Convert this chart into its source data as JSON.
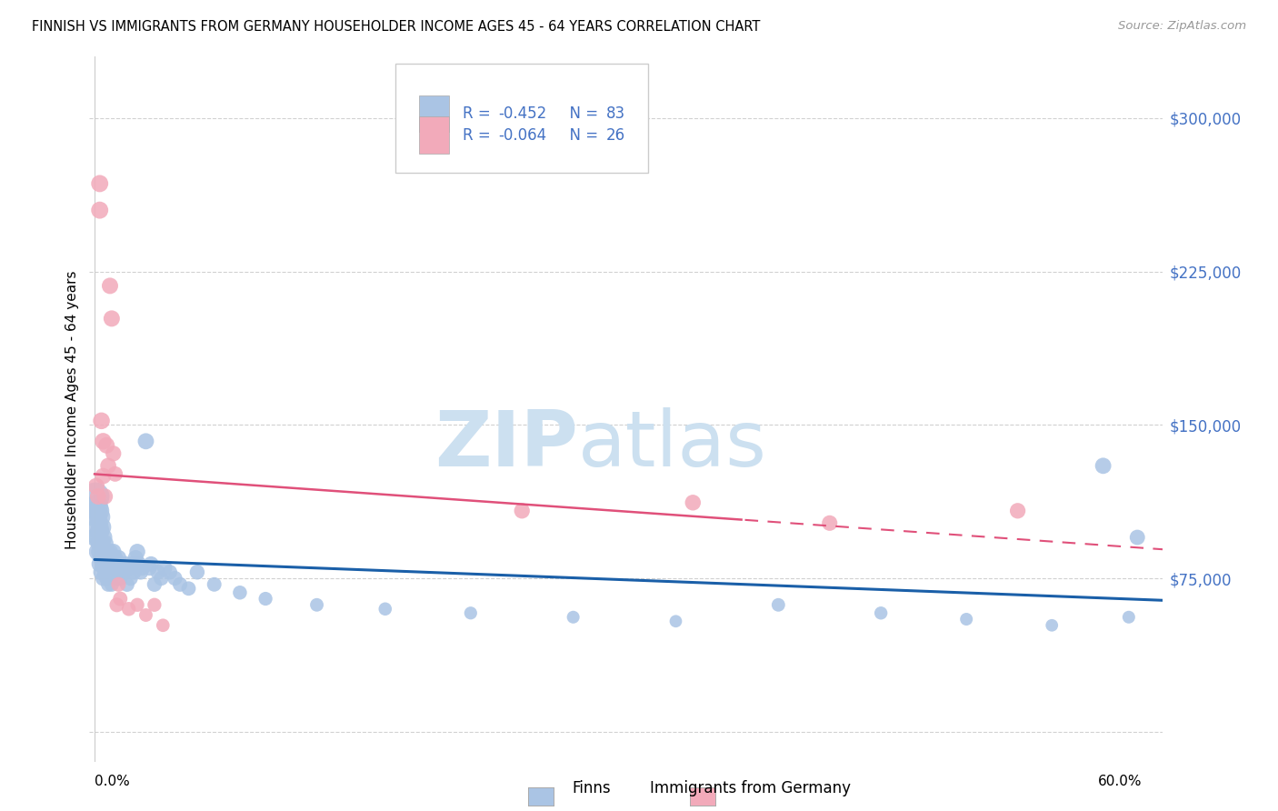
{
  "title": "FINNISH VS IMMIGRANTS FROM GERMANY HOUSEHOLDER INCOME AGES 45 - 64 YEARS CORRELATION CHART",
  "source": "Source: ZipAtlas.com",
  "ylabel": "Householder Income Ages 45 - 64 years",
  "y_ticks": [
    0,
    75000,
    150000,
    225000,
    300000
  ],
  "y_tick_labels": [
    "",
    "$75,000",
    "$150,000",
    "$225,000",
    "$300,000"
  ],
  "ylim": [
    -15000,
    330000
  ],
  "xlim": [
    -0.003,
    0.625
  ],
  "finn_color": "#aac4e4",
  "german_color": "#f2aaba",
  "finn_line_color": "#1a5fa8",
  "german_line_color": "#e0507a",
  "right_tick_color": "#4472c4",
  "grid_color": "#cccccc",
  "finns_x": [
    0.0005,
    0.001,
    0.001,
    0.001,
    0.002,
    0.002,
    0.002,
    0.002,
    0.003,
    0.003,
    0.003,
    0.003,
    0.003,
    0.004,
    0.004,
    0.004,
    0.004,
    0.005,
    0.005,
    0.005,
    0.005,
    0.006,
    0.006,
    0.006,
    0.007,
    0.007,
    0.007,
    0.008,
    0.008,
    0.008,
    0.009,
    0.009,
    0.01,
    0.01,
    0.01,
    0.011,
    0.011,
    0.012,
    0.013,
    0.014,
    0.014,
    0.015,
    0.015,
    0.016,
    0.017,
    0.018,
    0.019,
    0.02,
    0.021,
    0.022,
    0.023,
    0.024,
    0.025,
    0.026,
    0.027,
    0.028,
    0.03,
    0.032,
    0.033,
    0.035,
    0.037,
    0.039,
    0.041,
    0.044,
    0.047,
    0.05,
    0.055,
    0.06,
    0.07,
    0.085,
    0.1,
    0.13,
    0.17,
    0.22,
    0.28,
    0.34,
    0.4,
    0.46,
    0.51,
    0.56,
    0.59,
    0.605,
    0.61
  ],
  "finns_y": [
    115000,
    110000,
    105000,
    95000,
    108000,
    100000,
    95000,
    88000,
    105000,
    98000,
    92000,
    88000,
    82000,
    100000,
    92000,
    85000,
    78000,
    95000,
    88000,
    82000,
    75000,
    92000,
    85000,
    78000,
    88000,
    82000,
    75000,
    85000,
    78000,
    72000,
    88000,
    80000,
    85000,
    78000,
    72000,
    88000,
    78000,
    85000,
    80000,
    85000,
    75000,
    82000,
    75000,
    80000,
    78000,
    82000,
    72000,
    80000,
    75000,
    82000,
    78000,
    85000,
    88000,
    82000,
    78000,
    80000,
    142000,
    80000,
    82000,
    72000,
    78000,
    75000,
    80000,
    78000,
    75000,
    72000,
    70000,
    78000,
    72000,
    68000,
    65000,
    62000,
    60000,
    58000,
    56000,
    54000,
    62000,
    58000,
    55000,
    52000,
    130000,
    56000,
    95000
  ],
  "german_x": [
    0.001,
    0.002,
    0.003,
    0.003,
    0.004,
    0.005,
    0.005,
    0.006,
    0.007,
    0.008,
    0.009,
    0.01,
    0.011,
    0.012,
    0.013,
    0.014,
    0.015,
    0.02,
    0.025,
    0.03,
    0.035,
    0.04,
    0.25,
    0.35,
    0.43,
    0.54
  ],
  "german_y": [
    120000,
    115000,
    268000,
    255000,
    152000,
    142000,
    125000,
    115000,
    140000,
    130000,
    218000,
    202000,
    136000,
    126000,
    62000,
    72000,
    65000,
    60000,
    62000,
    57000,
    62000,
    52000,
    108000,
    112000,
    102000,
    108000
  ],
  "finn_sizes": [
    500,
    350,
    300,
    250,
    320,
    280,
    240,
    210,
    280,
    240,
    210,
    190,
    170,
    240,
    210,
    190,
    170,
    210,
    190,
    170,
    150,
    190,
    170,
    150,
    170,
    155,
    140,
    160,
    148,
    135,
    165,
    155,
    160,
    148,
    135,
    160,
    148,
    155,
    148,
    155,
    140,
    150,
    140,
    148,
    145,
    150,
    138,
    148,
    140,
    150,
    145,
    152,
    158,
    148,
    142,
    145,
    165,
    145,
    148,
    138,
    142,
    138,
    145,
    140,
    138,
    135,
    130,
    140,
    132,
    125,
    120,
    115,
    110,
    105,
    102,
    98,
    115,
    108,
    102,
    98,
    165,
    102,
    148
  ],
  "german_sizes": [
    175,
    165,
    185,
    185,
    178,
    175,
    165,
    162,
    168,
    162,
    168,
    168,
    155,
    150,
    135,
    135,
    132,
    125,
    122,
    115,
    122,
    112,
    155,
    158,
    152,
    155
  ]
}
